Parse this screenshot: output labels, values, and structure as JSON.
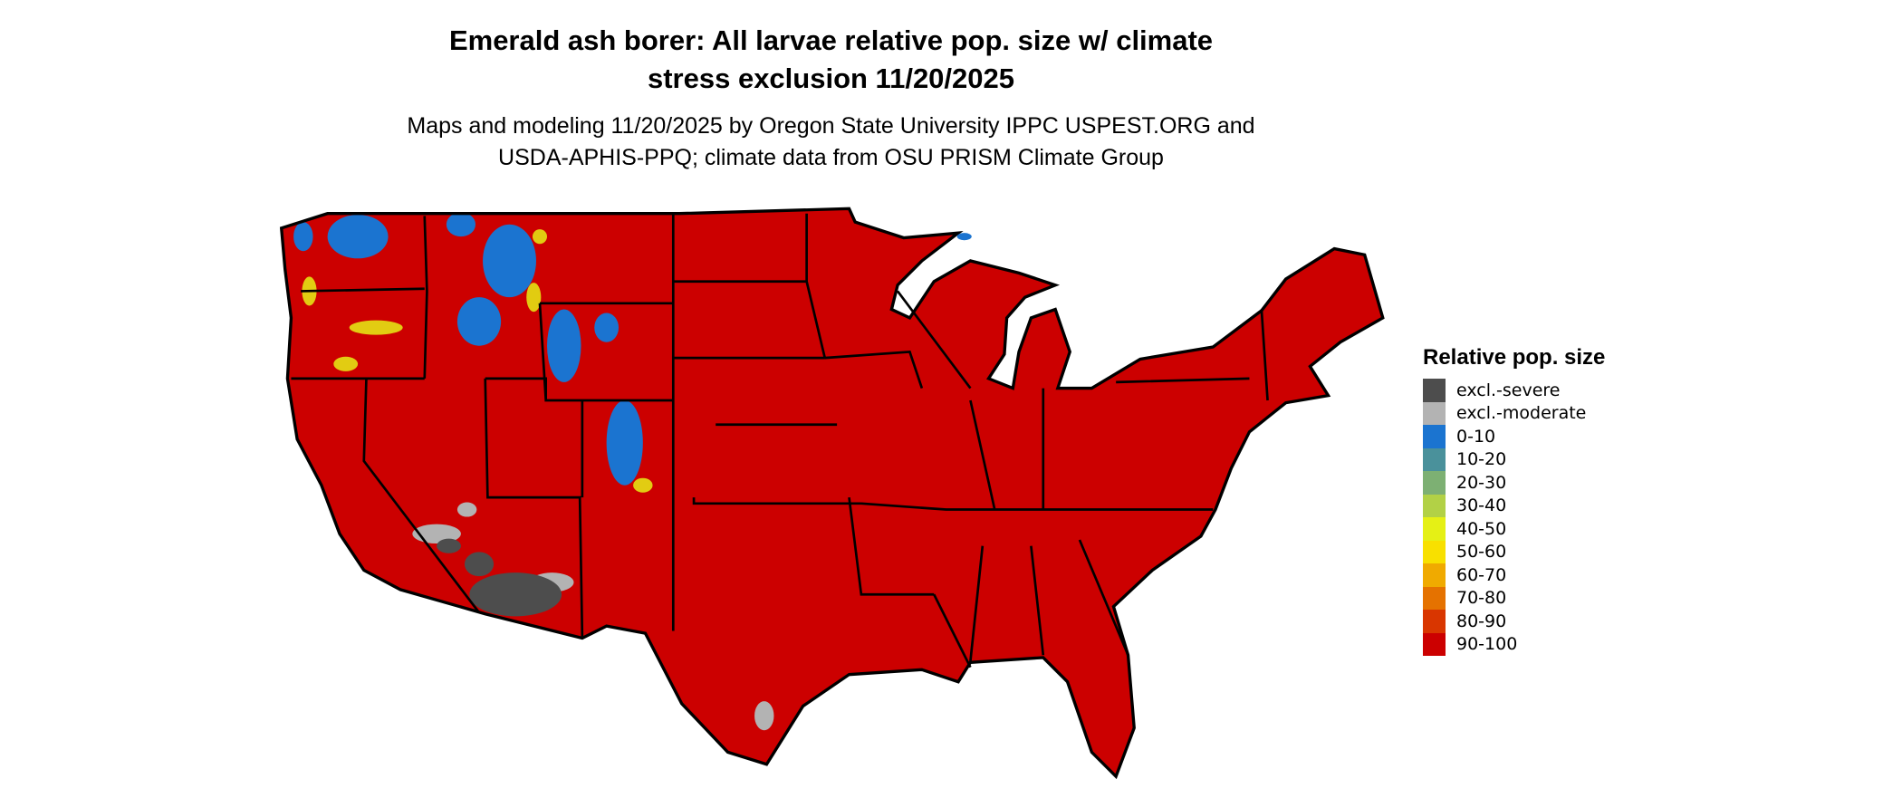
{
  "title": {
    "line1": "Emerald ash borer: All larvae relative pop. size w/ climate",
    "line2": "stress exclusion 11/20/2025"
  },
  "subtitle": {
    "line1": "Maps and modeling 11/20/2025 by Oregon State University IPPC USPEST.ORG and",
    "line2": "USDA-APHIS-PPQ; climate data from OSU PRISM Climate Group"
  },
  "legend": {
    "title": "Relative pop. size",
    "items": [
      {
        "label": "excl.-severe",
        "color": "#4d4d4d"
      },
      {
        "label": "excl.-moderate",
        "color": "#b3b3b3"
      },
      {
        "label": "0-10",
        "color": "#1b74d0"
      },
      {
        "label": "10-20",
        "color": "#4a919b"
      },
      {
        "label": "20-30",
        "color": "#7db073"
      },
      {
        "label": "30-40",
        "color": "#b2d146"
      },
      {
        "label": "40-50",
        "color": "#e5f015"
      },
      {
        "label": "50-60",
        "color": "#f8e000"
      },
      {
        "label": "60-70",
        "color": "#f0aa00"
      },
      {
        "label": "70-80",
        "color": "#e57200"
      },
      {
        "label": "80-90",
        "color": "#d93600"
      },
      {
        "label": "90-100",
        "color": "#cc0000"
      }
    ]
  },
  "map": {
    "region": "Contiguous United States",
    "dominant_class": "90-100",
    "border_color": "#000000"
  }
}
